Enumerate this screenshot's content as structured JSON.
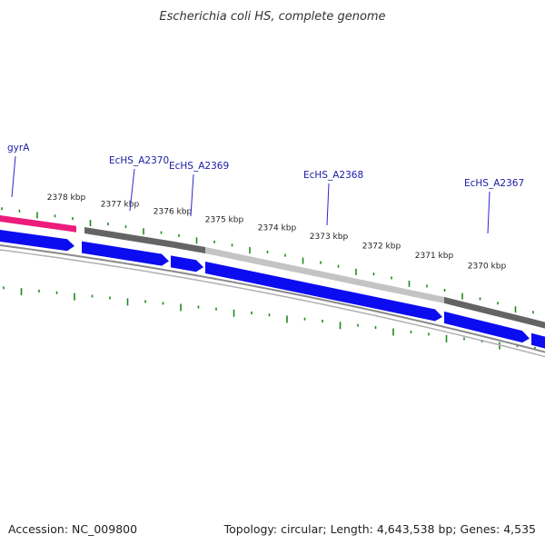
{
  "title": "Escherichia coli HS, complete genome",
  "footer": {
    "accession": "Accession: NC_009800",
    "summary": "Topology: circular; Length: 4,643,538 bp; Genes: 4,535"
  },
  "colors": {
    "tick": "#1d8a1d",
    "gene_label": "#1a1aa6",
    "leader": "#2a2ac8",
    "arrow_blue": "#0c0cf0",
    "pink": "#ec1c7c",
    "dark_gray": "#646464",
    "light_gray": "#c4c4c4",
    "backbone": "#8a8a8a"
  },
  "scale": {
    "labels": [
      "2378 kbp",
      "2377 kbp",
      "2376 kbp",
      "2375 kbp",
      "2374 kbp",
      "2373 kbp",
      "2372 kbp",
      "2371 kbp",
      "2370 kbp"
    ]
  },
  "genes": [
    {
      "name": "gyrA"
    },
    {
      "name": "EcHS_A2370"
    },
    {
      "name": "EcHS_A2369"
    },
    {
      "name": "EcHS_A2368"
    },
    {
      "name": "EcHS_A2367"
    }
  ]
}
